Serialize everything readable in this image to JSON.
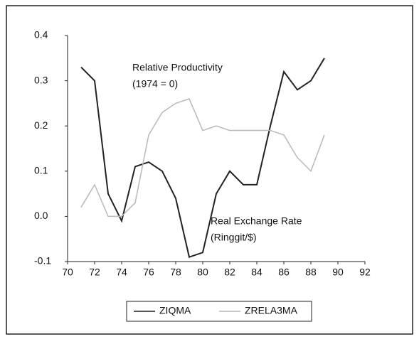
{
  "chart_data": {
    "type": "line",
    "x": [
      71,
      72,
      73,
      74,
      75,
      76,
      77,
      78,
      79,
      80,
      81,
      82,
      83,
      84,
      85,
      86,
      87,
      88,
      89
    ],
    "series": [
      {
        "name": "ZIQMA",
        "color": "#222222",
        "values": [
          0.33,
          0.3,
          0.05,
          -0.01,
          0.11,
          0.12,
          0.1,
          0.04,
          -0.09,
          -0.08,
          0.05,
          0.1,
          0.07,
          0.07,
          0.2,
          0.32,
          0.28,
          0.3,
          0.35
        ]
      },
      {
        "name": "ZRELA3MA",
        "color": "#b8b8b8",
        "values": [
          0.02,
          0.07,
          0.0,
          0.0,
          0.03,
          0.18,
          0.23,
          0.25,
          0.26,
          0.19,
          0.2,
          0.19,
          0.19,
          0.19,
          0.19,
          0.18,
          0.13,
          0.1,
          0.18
        ]
      }
    ],
    "annotations": [
      "Relative Productivity",
      "(1974 = 0)",
      "Real Exchange Rate",
      "(Ringgit/$)"
    ],
    "xlim": [
      70,
      92
    ],
    "xticks": [
      70,
      72,
      74,
      76,
      78,
      80,
      82,
      84,
      86,
      88,
      90,
      92
    ],
    "ylim": [
      -0.1,
      0.4
    ],
    "yticks": [
      -0.1,
      {
        "value": 0,
        "label": "0.0"
      },
      0.1,
      0.2,
      0.3,
      0.4
    ],
    "legend": "bottom"
  }
}
